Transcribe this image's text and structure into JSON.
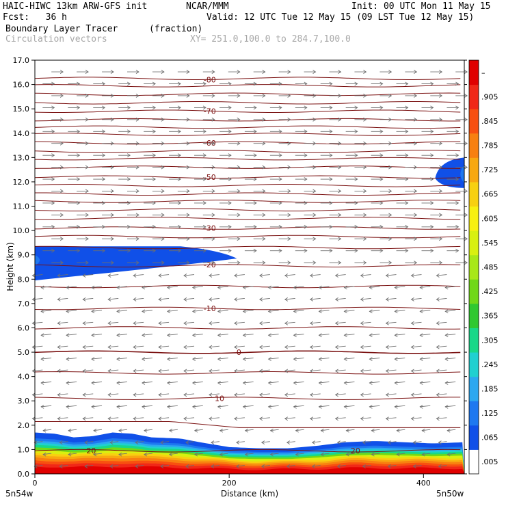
{
  "header": {
    "model": "HAIC-HIWC 13km ARW-GFS init",
    "org": "NCAR/MMM",
    "init": "Init: 00 UTC Mon 11 May 15",
    "fcst": "Fcst:   36 h",
    "valid": "Valid: 12 UTC Tue 12 May 15 (09 LST Tue 12 May 15)",
    "field": "Boundary Layer Tracer",
    "units": "(fraction)",
    "vectors": "Circulation vectors",
    "xy": "XY= 251.0,100.0 to 284.7,100.0"
  },
  "chart_data": {
    "type": "heatmap",
    "title": "Boundary Layer Tracer",
    "units": "(fraction)",
    "xlabel": "Distance (km)",
    "ylabel": "Height (km)",
    "xlim": [
      0,
      442
    ],
    "ylim": [
      0,
      17
    ],
    "x_ticks": [
      "0",
      "200",
      "400"
    ],
    "x_tick_values": [
      0,
      200,
      400
    ],
    "y_ticks": [
      "0.0",
      "1.0",
      "2.0",
      "3.0",
      "4.0",
      "5.0",
      "6.0",
      "7.0",
      "8.0",
      "9.0",
      "10.0",
      "11.0",
      "12.0",
      "13.0",
      "14.0",
      "15.0",
      "16.0",
      "17.0"
    ],
    "x_endpoints": {
      "left": "5n54w",
      "right": "5n50w"
    },
    "colorbar": {
      "labels": [
        ".005",
        ".065",
        ".125",
        ".185",
        ".245",
        ".305",
        ".365",
        ".425",
        ".485",
        ".545",
        ".605",
        ".665",
        ".725",
        ".785",
        ".845",
        ".905",
        "–"
      ],
      "colors": [
        "#ffffff",
        "#1050e8",
        "#1e78f0",
        "#2ca8f0",
        "#20d0d0",
        "#18d888",
        "#30c830",
        "#70d818",
        "#a8e818",
        "#d8f010",
        "#f8f010",
        "#f8d010",
        "#f8a810",
        "#f88010",
        "#f85010",
        "#f02818",
        "#e00000"
      ]
    },
    "tracer_regions": [
      {
        "name": "boundary-layer",
        "profile_x": [
          0,
          20,
          40,
          60,
          80,
          100,
          120,
          150,
          170,
          200,
          230,
          260,
          290,
          320,
          350,
          380,
          410,
          442
        ],
        "profile_top": [
          1.7,
          1.65,
          1.5,
          1.55,
          1.7,
          1.65,
          1.5,
          1.45,
          1.3,
          1.1,
          1.05,
          1.05,
          1.15,
          1.3,
          1.35,
          1.3,
          1.25,
          1.3
        ]
      },
      {
        "name": "upper-layer-left",
        "x": [
          0,
          208
        ],
        "y_bottom_left": 7.95,
        "y_top": 9.35,
        "y_tip": 8.85
      },
      {
        "name": "upper-layer-right",
        "x": [
          412,
          442
        ],
        "y_bottom": 11.75,
        "y_top": 13.0
      }
    ],
    "isotherm_labels": [
      {
        "label": "-80",
        "x": 180,
        "y": 16.2
      },
      {
        "label": "-70",
        "x": 180,
        "y": 14.9
      },
      {
        "label": "-60",
        "x": 180,
        "y": 13.6
      },
      {
        "label": "-50",
        "x": 180,
        "y": 12.2
      },
      {
        "label": "-30",
        "x": 180,
        "y": 10.1
      },
      {
        "label": "-20",
        "x": 180,
        "y": 8.6
      },
      {
        "label": "-10",
        "x": 180,
        "y": 6.8
      },
      {
        "label": "0",
        "x": 210,
        "y": 5.0
      },
      {
        "label": "10",
        "x": 190,
        "y": 3.1
      },
      {
        "label": "20",
        "x": 58,
        "y": 0.95
      },
      {
        "label": "20",
        "x": 330,
        "y": 0.95
      }
    ],
    "vectors": {
      "direction_above_8.5km": "east",
      "direction_below_8.5km": "west"
    }
  }
}
